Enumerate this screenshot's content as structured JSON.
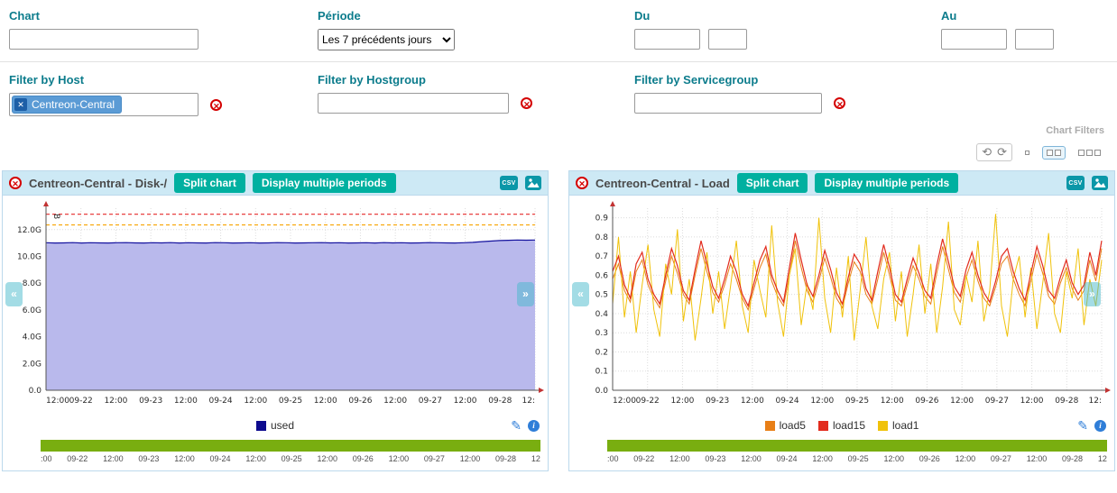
{
  "colors": {
    "label_teal": "#0c7c8c",
    "accent_teal": "#00b0a0",
    "header_blue": "#cde9f5",
    "panel_border": "#bcd9ec",
    "delete_red": "#d40000",
    "tag_blue": "#5b9bd5",
    "tag_dark_blue": "#1d5fa7",
    "timeline_green": "#79ae10",
    "action_blue": "#2f7ed8"
  },
  "filters": {
    "chart_label": "Chart",
    "chart_value": "",
    "periode_label": "Période",
    "periode_value": "Les 7 précédents jours",
    "du_label": "Du",
    "du_date": "",
    "du_time": "",
    "au_label": "Au",
    "au_date": "",
    "au_time": "",
    "host_label": "Filter by Host",
    "host_tag": "Centreon-Central",
    "hostgroup_label": "Filter by Hostgroup",
    "hostgroup_value": "",
    "servicegroup_label": "Filter by Servicegroup",
    "servicegroup_value": "",
    "caption": "Chart Filters"
  },
  "chart_ui": {
    "split": "Split chart",
    "multi": "Display multiple periods",
    "csv": "CSV"
  },
  "charts": [
    {
      "title": "Centreon-Central - Disk-/"
    },
    {
      "title": "Centreon-Central - Load"
    }
  ],
  "chart_data": [
    {
      "type": "area",
      "title": "Centreon-Central - Disk-/",
      "y_unit": "B",
      "ylim": [
        0,
        13.6
      ],
      "y_ticks": [
        {
          "v": 0,
          "label": "0.0"
        },
        {
          "v": 2,
          "label": "2.0G"
        },
        {
          "v": 4,
          "label": "4.0G"
        },
        {
          "v": 6,
          "label": "6.0G"
        },
        {
          "v": 8,
          "label": "8.0G"
        },
        {
          "v": 10,
          "label": "10.0G"
        },
        {
          "v": 12,
          "label": "12.0G"
        }
      ],
      "x_ticks": [
        "12:00",
        "09-22",
        "12:00",
        "09-23",
        "12:00",
        "09-24",
        "12:00",
        "09-25",
        "12:00",
        "09-26",
        "12:00",
        "09-27",
        "12:00",
        "09-28",
        "12:"
      ],
      "bottom_ticks": [
        ":00",
        "09-22",
        "12:00",
        "09-23",
        "12:00",
        "09-24",
        "12:00",
        "09-25",
        "12:00",
        "09-26",
        "12:00",
        "09-27",
        "12:00",
        "09-28",
        "12"
      ],
      "thresholds": [
        {
          "label": "warning",
          "value": 12.35,
          "color": "#f7a300"
        },
        {
          "label": "critical",
          "value": 13.15,
          "color": "#e62a2a"
        }
      ],
      "series": [
        {
          "name": "used",
          "color": "#14129e",
          "fill": "#b9b9ec",
          "width": 1.2,
          "values": [
            11.02,
            11.0,
            11.01,
            11.03,
            11.0,
            11.02,
            11.01,
            11.0,
            11.02,
            11.03,
            11.01,
            11.0,
            11.02,
            11.01,
            11.03,
            11.0,
            11.02,
            11.01,
            11.0,
            11.03,
            11.02,
            11.0,
            11.01,
            11.02,
            11.0,
            11.01,
            11.03,
            11.02,
            11.0,
            11.01,
            11.02,
            11.03,
            11.01,
            11.02,
            11.0,
            11.01,
            11.02,
            11.0,
            11.03,
            11.01,
            11.02,
            11.0,
            11.01,
            11.03,
            11.02,
            11.01,
            11.0,
            11.02,
            11.05,
            11.1,
            11.14,
            11.18,
            11.2,
            11.22,
            11.21,
            11.22
          ]
        }
      ],
      "legend": [
        {
          "label": "used",
          "color": "#0d0b8e"
        }
      ]
    },
    {
      "type": "line",
      "title": "Centreon-Central - Load",
      "ylim": [
        0,
        0.95
      ],
      "y_ticks": [
        {
          "v": 0,
          "label": "0.0"
        },
        {
          "v": 0.1,
          "label": "0.1"
        },
        {
          "v": 0.2,
          "label": "0.2"
        },
        {
          "v": 0.3,
          "label": "0.3"
        },
        {
          "v": 0.4,
          "label": "0.4"
        },
        {
          "v": 0.5,
          "label": "0.5"
        },
        {
          "v": 0.6,
          "label": "0.6"
        },
        {
          "v": 0.7,
          "label": "0.7"
        },
        {
          "v": 0.8,
          "label": "0.8"
        },
        {
          "v": 0.9,
          "label": "0.9"
        }
      ],
      "x_ticks": [
        "12:00",
        "09-22",
        "12:00",
        "09-23",
        "12:00",
        "09-24",
        "12:00",
        "09-25",
        "12:00",
        "09-26",
        "12:00",
        "09-27",
        "12:00",
        "09-28",
        "12:"
      ],
      "bottom_ticks": [
        ":00",
        "09-22",
        "12:00",
        "09-23",
        "12:00",
        "09-24",
        "12:00",
        "09-25",
        "12:00",
        "09-26",
        "12:00",
        "09-27",
        "12:00",
        "09-28",
        "12"
      ],
      "series": [
        {
          "name": "load5",
          "color": "#e87f17",
          "width": 1,
          "values": [
            0.58,
            0.66,
            0.52,
            0.46,
            0.62,
            0.68,
            0.55,
            0.48,
            0.43,
            0.57,
            0.7,
            0.61,
            0.5,
            0.45,
            0.6,
            0.74,
            0.62,
            0.51,
            0.46,
            0.55,
            0.66,
            0.58,
            0.48,
            0.42,
            0.53,
            0.64,
            0.71,
            0.57,
            0.49,
            0.44,
            0.6,
            0.78,
            0.64,
            0.52,
            0.46,
            0.57,
            0.69,
            0.59,
            0.48,
            0.43,
            0.56,
            0.67,
            0.62,
            0.5,
            0.45,
            0.58,
            0.72,
            0.6,
            0.47,
            0.44,
            0.55,
            0.65,
            0.58,
            0.49,
            0.45,
            0.61,
            0.75,
            0.63,
            0.51,
            0.46,
            0.59,
            0.68,
            0.57,
            0.48,
            0.44,
            0.54,
            0.66,
            0.7,
            0.58,
            0.5,
            0.44,
            0.57,
            0.71,
            0.61,
            0.49,
            0.45,
            0.56,
            0.64,
            0.53,
            0.47,
            0.52,
            0.68,
            0.57,
            0.74
          ]
        },
        {
          "name": "load1",
          "color": "#f0c20a",
          "width": 1,
          "values": [
            0.45,
            0.8,
            0.38,
            0.62,
            0.3,
            0.55,
            0.76,
            0.42,
            0.28,
            0.66,
            0.5,
            0.84,
            0.36,
            0.58,
            0.26,
            0.48,
            0.72,
            0.4,
            0.62,
            0.32,
            0.54,
            0.78,
            0.44,
            0.3,
            0.68,
            0.52,
            0.38,
            0.86,
            0.46,
            0.28,
            0.6,
            0.74,
            0.34,
            0.56,
            0.42,
            0.9,
            0.48,
            0.3,
            0.64,
            0.38,
            0.7,
            0.26,
            0.52,
            0.8,
            0.44,
            0.32,
            0.58,
            0.72,
            0.36,
            0.62,
            0.28,
            0.5,
            0.76,
            0.4,
            0.66,
            0.3,
            0.54,
            0.88,
            0.42,
            0.34,
            0.6,
            0.46,
            0.78,
            0.36,
            0.52,
            0.92,
            0.44,
            0.28,
            0.58,
            0.7,
            0.38,
            0.64,
            0.32,
            0.56,
            0.82,
            0.4,
            0.3,
            0.62,
            0.48,
            0.74,
            0.34,
            0.58,
            0.44,
            0.68
          ]
        },
        {
          "name": "load15",
          "color": "#e22b1d",
          "width": 1.2,
          "values": [
            0.62,
            0.7,
            0.55,
            0.48,
            0.66,
            0.72,
            0.58,
            0.5,
            0.45,
            0.6,
            0.74,
            0.65,
            0.52,
            0.47,
            0.63,
            0.78,
            0.66,
            0.54,
            0.48,
            0.58,
            0.7,
            0.62,
            0.5,
            0.44,
            0.56,
            0.68,
            0.75,
            0.6,
            0.52,
            0.46,
            0.64,
            0.82,
            0.68,
            0.55,
            0.49,
            0.6,
            0.73,
            0.63,
            0.51,
            0.45,
            0.59,
            0.71,
            0.66,
            0.53,
            0.47,
            0.62,
            0.76,
            0.64,
            0.5,
            0.46,
            0.58,
            0.69,
            0.61,
            0.52,
            0.48,
            0.65,
            0.79,
            0.67,
            0.54,
            0.49,
            0.63,
            0.72,
            0.6,
            0.51,
            0.46,
            0.57,
            0.7,
            0.74,
            0.62,
            0.53,
            0.47,
            0.61,
            0.75,
            0.65,
            0.52,
            0.48,
            0.59,
            0.68,
            0.56,
            0.5,
            0.55,
            0.72,
            0.6,
            0.78
          ]
        }
      ],
      "legend": [
        {
          "label": "load5",
          "color": "#e87f17"
        },
        {
          "label": "load15",
          "color": "#e22b1d"
        },
        {
          "label": "load1",
          "color": "#f0c20a"
        }
      ]
    }
  ]
}
